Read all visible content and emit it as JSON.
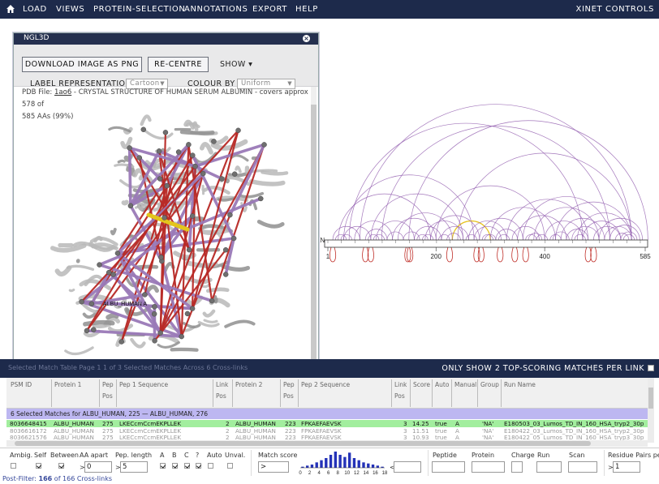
{
  "menu": {
    "home_icon": "home-icon",
    "items": [
      "LOAD",
      "VIEWS",
      "PROTEIN-SELECTION",
      "ANNOTATIONS",
      "EXPORT",
      "HELP"
    ],
    "right": "XINET CONTROLS"
  },
  "ngl": {
    "title": "NGL3D",
    "download_label": "DOWNLOAD IMAGE AS PNG",
    "recentre_label": "RE-CENTRE",
    "show_label": "SHOW ▾",
    "label_rep_label": "LABEL REPRESENTATION",
    "label_rep_value": "Cartoon",
    "colour_by_label": "COLOUR BY",
    "colour_by_value": "Uniform",
    "pdb_prefix": "PDB File: ",
    "pdb_id": "1ao6",
    "pdb_desc": " - CRYSTAL STRUCTURE OF HUMAN SERUM ALBUMIN - covers approx 578 of",
    "pdb_coverage": "585 AAs (99%)",
    "structure_label": "ALBU_HUMAN A",
    "close_icon": "close-icon"
  },
  "xiview": {
    "protein_label": "AN",
    "axis_ticks": [
      {
        "value": 1,
        "label": "1"
      },
      {
        "value": 200,
        "label": "200"
      },
      {
        "value": 400,
        "label": "400"
      },
      {
        "value": 585,
        "label": "585"
      }
    ],
    "colors": {
      "link": "#9460b0",
      "selfloop": "#c0302a",
      "selected": "#e7c321"
    }
  },
  "grid": {
    "ghost_text": "Selected Match Table  Page   1   1 of 3  Selected Matches  Across  6 Cross-links",
    "only_top": "ONLY SHOW 2 TOP-SCORING MATCHES PER LINK",
    "columns": {
      "psm_id": "PSM ID",
      "protein1": "Protein 1",
      "pep_pos": "Pep",
      "pep_pos2": "Pos",
      "pep1_seq": "Pep 1 Sequence",
      "link": "Link",
      "link_pos": "Pos",
      "protein2": "Protein 2",
      "pep2_pos": "Pep",
      "pep2_pos2": "Pos",
      "pep2_seq": "Pep 2 Sequence",
      "link2": "Link",
      "link2_pos": "Pos",
      "score": "Score",
      "auto": "Auto",
      "manual": "Manual",
      "group": "Group",
      "run_name": "Run Name"
    },
    "group_header": "6 Selected Matches for ALBU_HUMAN, 225 — ALBU_HUMAN, 276",
    "rows": [
      {
        "psm": "8036648415",
        "p1": "ALBU_HUMAN",
        "pos1": "275",
        "seq1": "LKECcmCcmEKPLLEK",
        "l1": "2",
        "p2": "ALBU_HUMAN",
        "pos2": "223",
        "seq2": "FPKAEFAEVSK",
        "l2": "3",
        "score": "14.25",
        "auto": "true",
        "manual": "A",
        "group": "'NA'",
        "run": "E180503_03_Lumos_TD_IN_160_HSA_tryp2_30p"
      },
      {
        "psm": "8036616172",
        "p1": "ALBU_HUMAN",
        "pos1": "275",
        "seq1": "LKECcmCcmEKPLLEK",
        "l1": "2",
        "p2": "ALBU_HUMAN",
        "pos2": "223",
        "seq2": "FPKAEFAEVSK",
        "l2": "3",
        "score": "11.51",
        "auto": "true",
        "manual": "A",
        "group": "'NA'",
        "run": "E180422_03_Lumos_TD_IN_160_HSA_tryp2_30p"
      },
      {
        "psm": "8036621576",
        "p1": "ALBU_HUMAN",
        "pos1": "275",
        "seq1": "LKECcmCcmEKPLLEK",
        "l1": "2",
        "p2": "ALBU_HUMAN",
        "pos2": "223",
        "seq2": "FPKAEFAEVSK",
        "l2": "3",
        "score": "10.93",
        "auto": "true",
        "manual": "A",
        "group": "'NA'",
        "run": "E180422_05_Lumos_TD_IN_160_HSA_tryp3_30p"
      }
    ]
  },
  "filters": {
    "ambig": "Ambig.",
    "self": "Self",
    "between": "Between",
    "aa_apart": "AA apart",
    "aa_apart_value": "0",
    "pep_length": "Pep. length",
    "pep_length_value": "5",
    "a": "A",
    "b": "B",
    "c": "C",
    "q": "?",
    "auto": "Auto",
    "unval": "Unval.",
    "match_score": "Match score",
    "peptide": "Peptide",
    "protein": "Protein",
    "charge": "Charge",
    "run": "Run",
    "scan": "Scan",
    "residue_pairs": "Residue Pairs per",
    "residue_pairs_value": "1",
    "gt": ">",
    "lt": "<",
    "score_ticks": [
      "0",
      "2",
      "4",
      "6",
      "8",
      "10",
      "12",
      "14",
      "16",
      "18"
    ],
    "score_hist": [
      1,
      2,
      3,
      5,
      7,
      9,
      12,
      15,
      12,
      10,
      14,
      9,
      7,
      5,
      4,
      3,
      2,
      1
    ]
  },
  "post_filter": {
    "prefix": "Post-Filter: ",
    "count": "166",
    "suffix": " of 166 Cross-links"
  }
}
